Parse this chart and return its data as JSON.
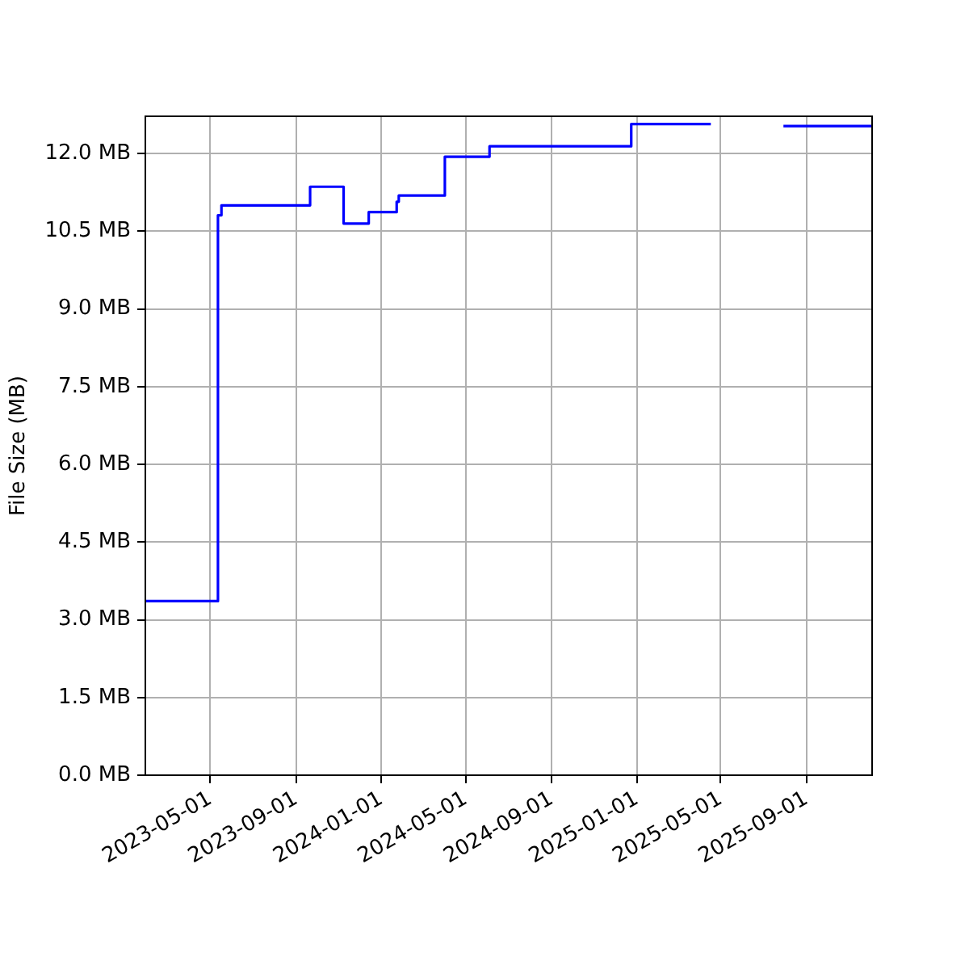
{
  "chart_data": {
    "type": "step",
    "ylabel": "File Size (MB)",
    "x": [
      "2023-01-28",
      "2023-05-12",
      "2023-05-17",
      "2023-09-21",
      "2023-11-08",
      "2023-12-14",
      "2024-01-23",
      "2024-01-26",
      "2024-04-01",
      "2024-06-04",
      "2024-12-24",
      "2025-04-17",
      "2025-06-01",
      "2025-07-30",
      "2025-12-04"
    ],
    "series": [
      {
        "color": "#0000ff",
        "values": [
          3.36,
          10.81,
          11.0,
          11.36,
          10.65,
          10.87,
          11.07,
          11.19,
          11.94,
          12.14,
          12.57,
          12.57,
          null,
          12.53,
          12.55
        ]
      }
    ],
    "xlim": [
      "2023-01-28",
      "2025-12-04"
    ],
    "xticks": [
      "2023-05-01",
      "2023-09-01",
      "2024-01-01",
      "2024-05-01",
      "2024-09-01",
      "2025-01-01",
      "2025-05-01",
      "2025-09-01"
    ],
    "ylim": [
      0,
      12.72
    ],
    "yticks": [
      {
        "value": 0,
        "label": "0.0 MB"
      },
      {
        "value": 1.5,
        "label": "1.5 MB"
      },
      {
        "value": 3,
        "label": "3.0 MB"
      },
      {
        "value": 4.5,
        "label": "4.5 MB"
      },
      {
        "value": 6,
        "label": "6.0 MB"
      },
      {
        "value": 7.5,
        "label": "7.5 MB"
      },
      {
        "value": 9,
        "label": "9.0 MB"
      },
      {
        "value": 10.5,
        "label": "10.5 MB"
      },
      {
        "value": 12,
        "label": "12.0 MB"
      }
    ],
    "grid": true
  }
}
